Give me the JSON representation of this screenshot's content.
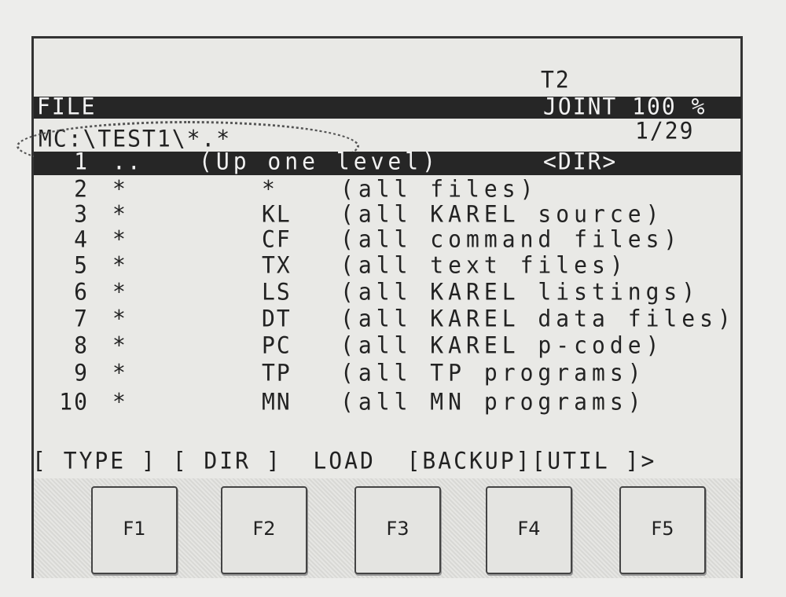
{
  "header": {
    "mode": "T2",
    "title": "FILE",
    "status": "JOINT 100 %",
    "path": "MC:\\TEST1\\*.*",
    "position": "1/29"
  },
  "selected_row": {
    "num": "1",
    "name": "..",
    "desc": "(Up one level)",
    "type": "<DIR>"
  },
  "rows": [
    {
      "num": "2",
      "name": "*",
      "ext": "*",
      "desc": "(all files)"
    },
    {
      "num": "3",
      "name": "*",
      "ext": "KL",
      "desc": "(all KAREL source)"
    },
    {
      "num": "4",
      "name": "*",
      "ext": "CF",
      "desc": "(all command files)"
    },
    {
      "num": "5",
      "name": "*",
      "ext": "TX",
      "desc": "(all text files)"
    },
    {
      "num": "6",
      "name": "*",
      "ext": "LS",
      "desc": "(all KAREL listings)"
    },
    {
      "num": "7",
      "name": "*",
      "ext": "DT",
      "desc": "(all KAREL data files)"
    },
    {
      "num": "8",
      "name": "*",
      "ext": "PC",
      "desc": "(all KAREL p-code)"
    },
    {
      "num": "9",
      "name": "*",
      "ext": "TP",
      "desc": "(all TP programs)"
    },
    {
      "num": "10",
      "name": "*",
      "ext": "MN",
      "desc": "(all MN programs)"
    }
  ],
  "softkeys": "[ TYPE ] [ DIR ]  LOAD  [BACKUP][UTIL ]>",
  "fkeys": [
    "F1",
    "F2",
    "F3",
    "F4",
    "F5"
  ]
}
